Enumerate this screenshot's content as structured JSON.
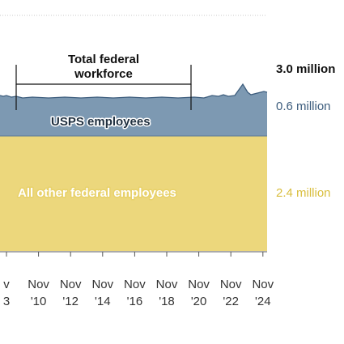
{
  "chart_data": {
    "type": "area",
    "title": "Total federal workforce",
    "x_tick_months": [
      "v",
      "Nov",
      "Nov",
      "Nov",
      "Nov",
      "Nov",
      "Nov",
      "Nov",
      "Nov"
    ],
    "x_tick_years": [
      "3",
      "'10",
      "'12",
      "'14",
      "'16",
      "'18",
      "'20",
      "'22",
      "'24"
    ],
    "total": {
      "label": "3.0 million",
      "value_millions": 3.0
    },
    "series": [
      {
        "name": "USPS employees",
        "value_label": "0.6 million",
        "value_millions": 0.6,
        "color": "#4f6f8f",
        "fill": "#7d99b2"
      },
      {
        "name": "All other federal employees",
        "value_label": "2.4 million",
        "value_millions": 2.4,
        "color": "#e8d16a",
        "fill": "#ecd77c"
      }
    ],
    "gridlines": true
  }
}
